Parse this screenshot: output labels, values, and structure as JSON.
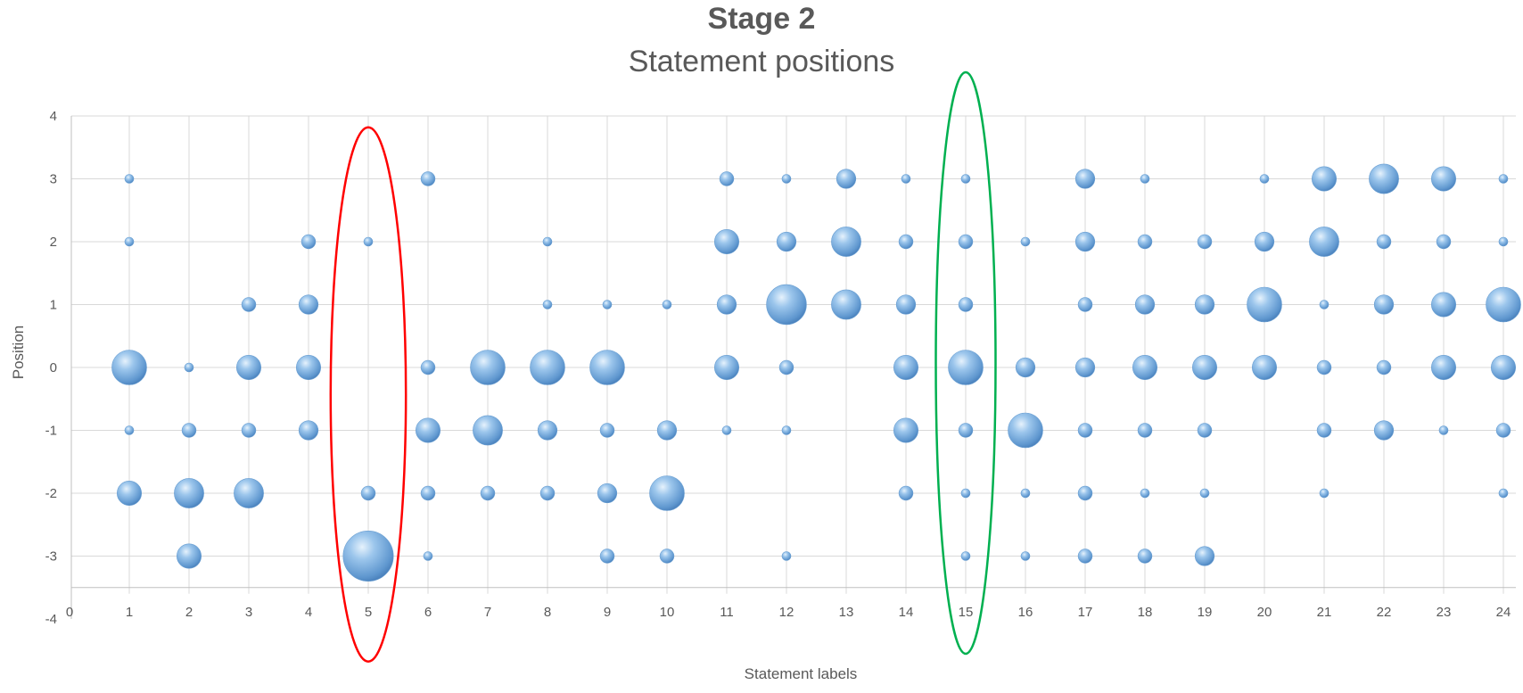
{
  "chart_data": {
    "type": "scatter",
    "subtype": "bubble",
    "title": "Stage 2",
    "subtitle": "Statement positions",
    "xlabel": "Statement labels",
    "ylabel": "Position",
    "xlim": [
      0,
      24
    ],
    "ylim": [
      -4,
      4
    ],
    "x_ticks": [
      "0",
      "1",
      "2",
      "3",
      "4",
      "5",
      "6",
      "7",
      "8",
      "9",
      "10",
      "11",
      "12",
      "13",
      "14",
      "15",
      "16",
      "17",
      "18",
      "19",
      "20",
      "21",
      "22",
      "23",
      "24"
    ],
    "y_ticks": [
      "4",
      "3",
      "2",
      "1",
      "0",
      "-1",
      "-2",
      "-3",
      "-4"
    ],
    "grid": true,
    "bubble_color": "#7fb1e0",
    "highlights": [
      {
        "x": 5,
        "color": "#ff0000"
      },
      {
        "x": 15,
        "color": "#00b050"
      }
    ],
    "points": [
      {
        "x": 1,
        "y": 3,
        "size": 1
      },
      {
        "x": 1,
        "y": 2,
        "size": 1
      },
      {
        "x": 1,
        "y": 0,
        "size": 6
      },
      {
        "x": 1,
        "y": -1,
        "size": 1
      },
      {
        "x": 1,
        "y": -2,
        "size": 4
      },
      {
        "x": 2,
        "y": 0,
        "size": 1
      },
      {
        "x": 2,
        "y": -1,
        "size": 2
      },
      {
        "x": 2,
        "y": -2,
        "size": 5
      },
      {
        "x": 2,
        "y": -3,
        "size": 4
      },
      {
        "x": 3,
        "y": 1,
        "size": 2
      },
      {
        "x": 3,
        "y": 0,
        "size": 4
      },
      {
        "x": 3,
        "y": -1,
        "size": 2
      },
      {
        "x": 3,
        "y": -2,
        "size": 5
      },
      {
        "x": 4,
        "y": 2,
        "size": 2
      },
      {
        "x": 4,
        "y": 1,
        "size": 3
      },
      {
        "x": 4,
        "y": 0,
        "size": 4
      },
      {
        "x": 4,
        "y": -1,
        "size": 3
      },
      {
        "x": 5,
        "y": 2,
        "size": 1
      },
      {
        "x": 5,
        "y": -2,
        "size": 2
      },
      {
        "x": 5,
        "y": -3,
        "size": 9
      },
      {
        "x": 6,
        "y": 3,
        "size": 2
      },
      {
        "x": 6,
        "y": 0,
        "size": 2
      },
      {
        "x": 6,
        "y": -1,
        "size": 4
      },
      {
        "x": 6,
        "y": -2,
        "size": 2
      },
      {
        "x": 6,
        "y": -3,
        "size": 1
      },
      {
        "x": 7,
        "y": 0,
        "size": 6
      },
      {
        "x": 7,
        "y": -1,
        "size": 5
      },
      {
        "x": 7,
        "y": -2,
        "size": 2
      },
      {
        "x": 8,
        "y": 2,
        "size": 1
      },
      {
        "x": 8,
        "y": 1,
        "size": 1
      },
      {
        "x": 8,
        "y": 0,
        "size": 6
      },
      {
        "x": 8,
        "y": -1,
        "size": 3
      },
      {
        "x": 8,
        "y": -2,
        "size": 2
      },
      {
        "x": 9,
        "y": 1,
        "size": 1
      },
      {
        "x": 9,
        "y": 0,
        "size": 6
      },
      {
        "x": 9,
        "y": -1,
        "size": 2
      },
      {
        "x": 9,
        "y": -2,
        "size": 3
      },
      {
        "x": 9,
        "y": -3,
        "size": 2
      },
      {
        "x": 10,
        "y": 1,
        "size": 1
      },
      {
        "x": 10,
        "y": -1,
        "size": 3
      },
      {
        "x": 10,
        "y": -2,
        "size": 6
      },
      {
        "x": 10,
        "y": -3,
        "size": 2
      },
      {
        "x": 11,
        "y": 3,
        "size": 2
      },
      {
        "x": 11,
        "y": 2,
        "size": 4
      },
      {
        "x": 11,
        "y": 1,
        "size": 3
      },
      {
        "x": 11,
        "y": 0,
        "size": 4
      },
      {
        "x": 11,
        "y": -1,
        "size": 1
      },
      {
        "x": 12,
        "y": 3,
        "size": 1
      },
      {
        "x": 12,
        "y": 2,
        "size": 3
      },
      {
        "x": 12,
        "y": 1,
        "size": 7
      },
      {
        "x": 12,
        "y": 0,
        "size": 2
      },
      {
        "x": 12,
        "y": -1,
        "size": 1
      },
      {
        "x": 12,
        "y": -3,
        "size": 1
      },
      {
        "x": 13,
        "y": 3,
        "size": 3
      },
      {
        "x": 13,
        "y": 2,
        "size": 5
      },
      {
        "x": 13,
        "y": 1,
        "size": 5
      },
      {
        "x": 14,
        "y": 3,
        "size": 1
      },
      {
        "x": 14,
        "y": 2,
        "size": 2
      },
      {
        "x": 14,
        "y": 1,
        "size": 3
      },
      {
        "x": 14,
        "y": 0,
        "size": 4
      },
      {
        "x": 14,
        "y": -1,
        "size": 4
      },
      {
        "x": 14,
        "y": -2,
        "size": 2
      },
      {
        "x": 15,
        "y": 3,
        "size": 1
      },
      {
        "x": 15,
        "y": 2,
        "size": 2
      },
      {
        "x": 15,
        "y": 1,
        "size": 2
      },
      {
        "x": 15,
        "y": 0,
        "size": 6
      },
      {
        "x": 15,
        "y": -1,
        "size": 2
      },
      {
        "x": 15,
        "y": -2,
        "size": 1
      },
      {
        "x": 15,
        "y": -3,
        "size": 1
      },
      {
        "x": 16,
        "y": 2,
        "size": 1
      },
      {
        "x": 16,
        "y": 0,
        "size": 3
      },
      {
        "x": 16,
        "y": -1,
        "size": 6
      },
      {
        "x": 16,
        "y": -2,
        "size": 1
      },
      {
        "x": 16,
        "y": -3,
        "size": 1
      },
      {
        "x": 17,
        "y": 3,
        "size": 3
      },
      {
        "x": 17,
        "y": 2,
        "size": 3
      },
      {
        "x": 17,
        "y": 1,
        "size": 2
      },
      {
        "x": 17,
        "y": 0,
        "size": 3
      },
      {
        "x": 17,
        "y": -1,
        "size": 2
      },
      {
        "x": 17,
        "y": -2,
        "size": 2
      },
      {
        "x": 17,
        "y": -3,
        "size": 2
      },
      {
        "x": 18,
        "y": 3,
        "size": 1
      },
      {
        "x": 18,
        "y": 2,
        "size": 2
      },
      {
        "x": 18,
        "y": 1,
        "size": 3
      },
      {
        "x": 18,
        "y": 0,
        "size": 4
      },
      {
        "x": 18,
        "y": -1,
        "size": 2
      },
      {
        "x": 18,
        "y": -2,
        "size": 1
      },
      {
        "x": 18,
        "y": -3,
        "size": 2
      },
      {
        "x": 19,
        "y": 2,
        "size": 2
      },
      {
        "x": 19,
        "y": 1,
        "size": 3
      },
      {
        "x": 19,
        "y": 0,
        "size": 4
      },
      {
        "x": 19,
        "y": -1,
        "size": 2
      },
      {
        "x": 19,
        "y": -2,
        "size": 1
      },
      {
        "x": 19,
        "y": -3,
        "size": 3
      },
      {
        "x": 20,
        "y": 3,
        "size": 1
      },
      {
        "x": 20,
        "y": 2,
        "size": 3
      },
      {
        "x": 20,
        "y": 1,
        "size": 6
      },
      {
        "x": 20,
        "y": 0,
        "size": 4
      },
      {
        "x": 21,
        "y": 3,
        "size": 4
      },
      {
        "x": 21,
        "y": 2,
        "size": 5
      },
      {
        "x": 21,
        "y": 1,
        "size": 1
      },
      {
        "x": 21,
        "y": 0,
        "size": 2
      },
      {
        "x": 21,
        "y": -1,
        "size": 2
      },
      {
        "x": 21,
        "y": -2,
        "size": 1
      },
      {
        "x": 22,
        "y": 3,
        "size": 5
      },
      {
        "x": 22,
        "y": 2,
        "size": 2
      },
      {
        "x": 22,
        "y": 1,
        "size": 3
      },
      {
        "x": 22,
        "y": 0,
        "size": 2
      },
      {
        "x": 22,
        "y": -1,
        "size": 3
      },
      {
        "x": 23,
        "y": 3,
        "size": 4
      },
      {
        "x": 23,
        "y": 2,
        "size": 2
      },
      {
        "x": 23,
        "y": 1,
        "size": 4
      },
      {
        "x": 23,
        "y": 0,
        "size": 4
      },
      {
        "x": 23,
        "y": -1,
        "size": 1
      },
      {
        "x": 24,
        "y": 3,
        "size": 1
      },
      {
        "x": 24,
        "y": 2,
        "size": 1
      },
      {
        "x": 24,
        "y": 1,
        "size": 6
      },
      {
        "x": 24,
        "y": 0,
        "size": 4
      },
      {
        "x": 24,
        "y": -1,
        "size": 2
      },
      {
        "x": 24,
        "y": -2,
        "size": 1
      }
    ]
  }
}
